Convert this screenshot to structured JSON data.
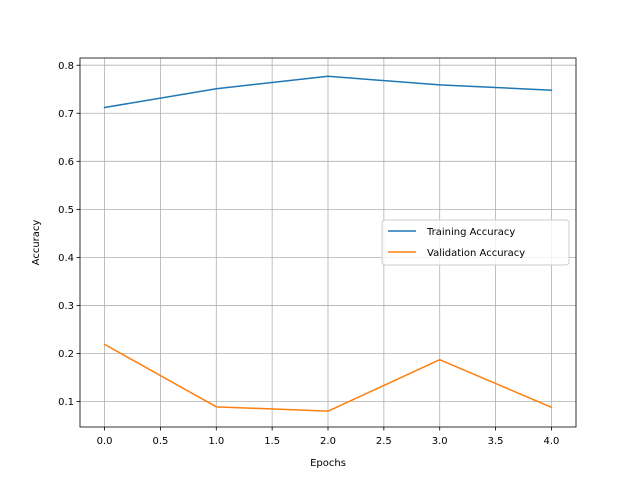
{
  "chart_data": {
    "type": "line",
    "title": "",
    "xlabel": "Epochs",
    "ylabel": "Accuracy",
    "x": [
      0,
      1,
      2,
      3,
      4
    ],
    "xlim": [
      -0.22,
      4.22
    ],
    "ylim": [
      0.047,
      0.815
    ],
    "xticks": [
      0.0,
      0.5,
      1.0,
      1.5,
      2.0,
      2.5,
      3.0,
      3.5,
      4.0
    ],
    "xtick_labels": [
      "0.0",
      "0.5",
      "1.0",
      "1.5",
      "2.0",
      "2.5",
      "3.0",
      "3.5",
      "4.0"
    ],
    "yticks": [
      0.1,
      0.2,
      0.3,
      0.4,
      0.5,
      0.6,
      0.7,
      0.8
    ],
    "ytick_labels": [
      "0.1",
      "0.2",
      "0.3",
      "0.4",
      "0.5",
      "0.6",
      "0.7",
      "0.8"
    ],
    "grid": true,
    "legend_position": "center-right",
    "series": [
      {
        "name": "Training Accuracy",
        "color": "#1f77b4",
        "values": [
          0.712,
          0.751,
          0.777,
          0.759,
          0.748
        ]
      },
      {
        "name": "Validation Accuracy",
        "color": "#ff7f0e",
        "values": [
          0.219,
          0.089,
          0.08,
          0.187,
          0.088
        ]
      }
    ]
  }
}
